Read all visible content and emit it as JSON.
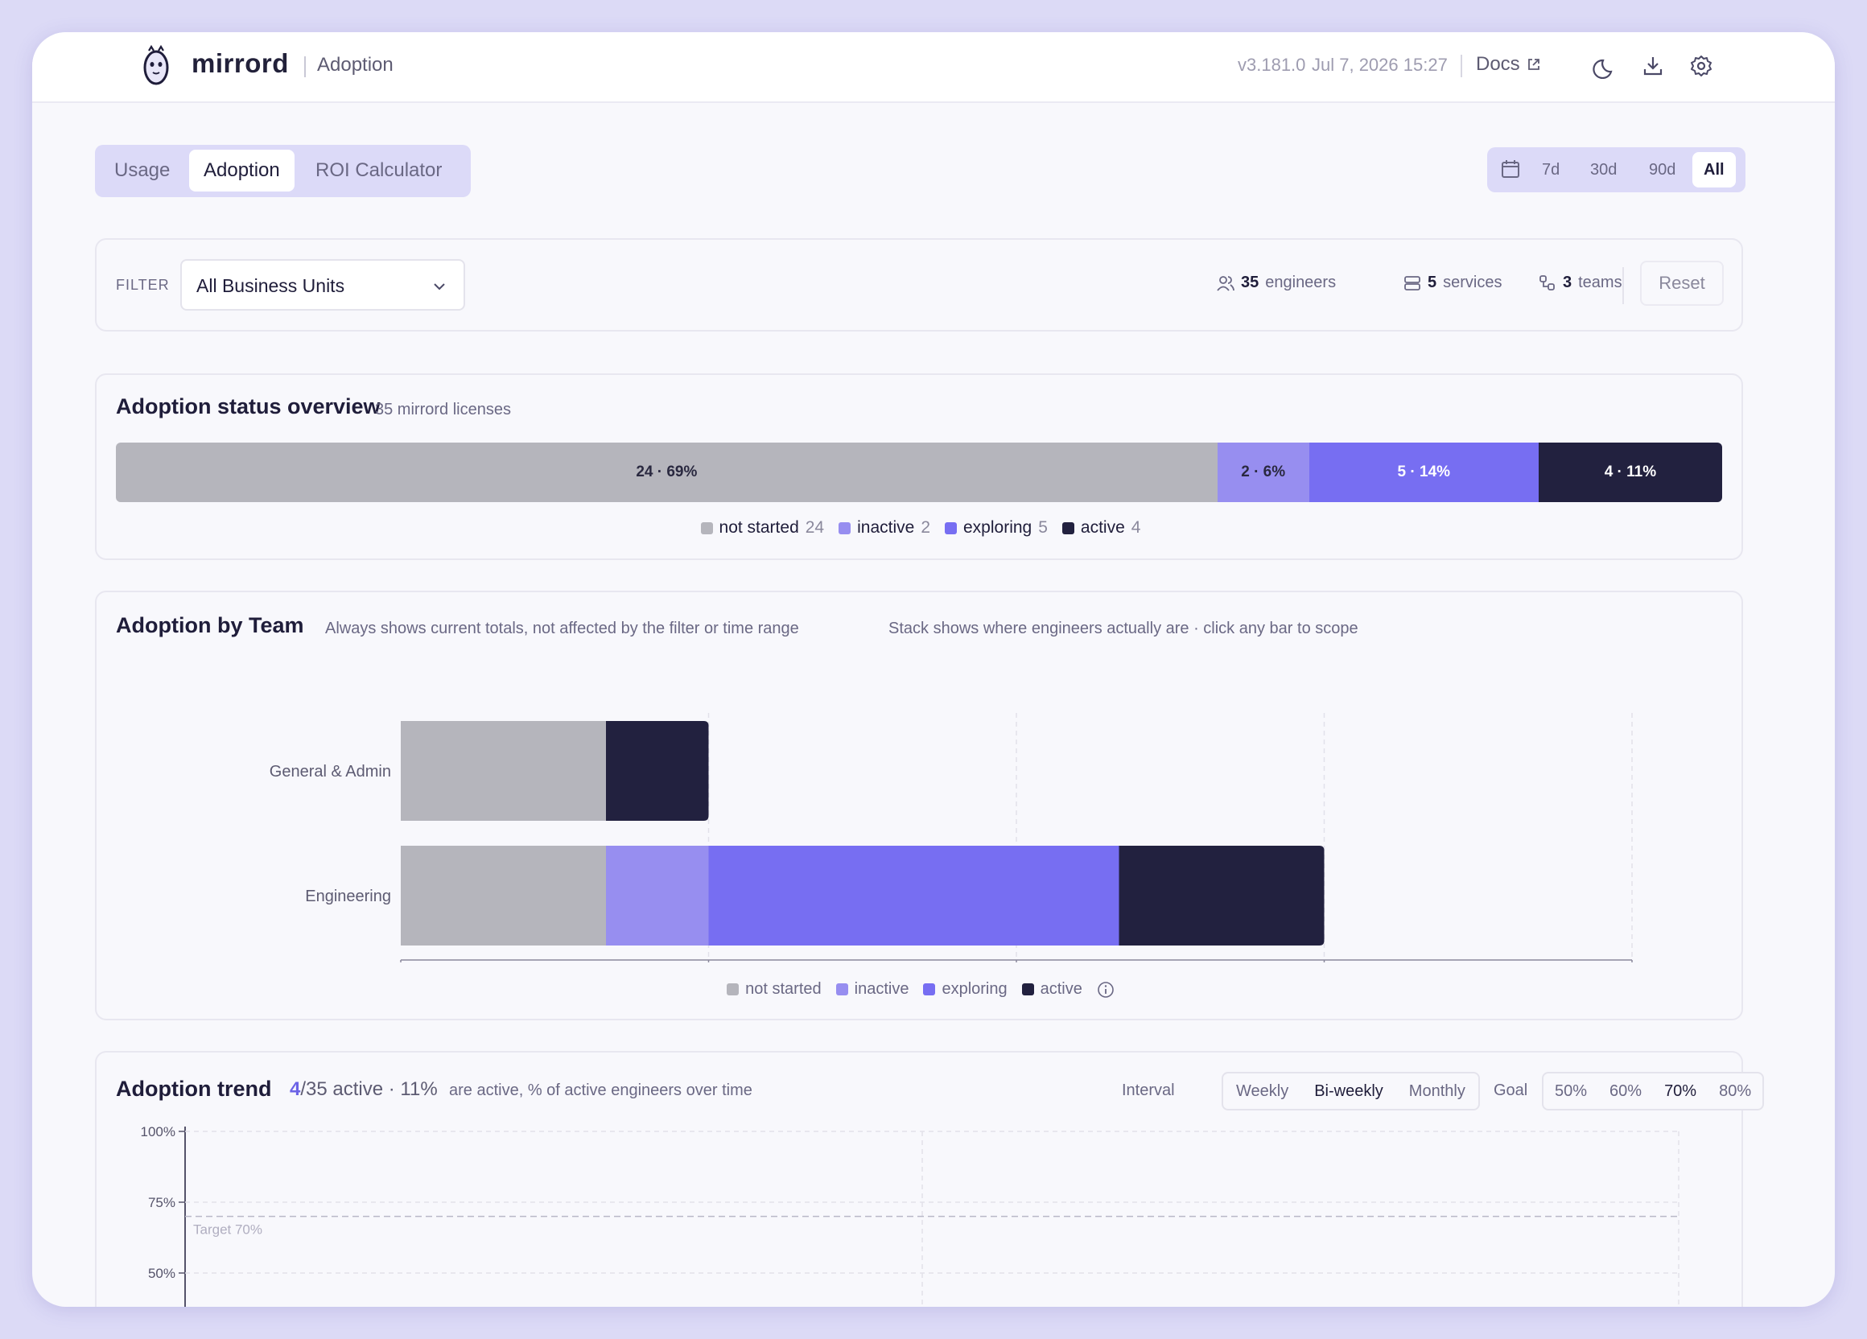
{
  "header": {
    "brand": "mirrord",
    "page": "Adoption",
    "version": "v3.181.0",
    "timestamp": "Jul 7, 2026 15:27",
    "docs_label": "Docs"
  },
  "tabs": [
    "Usage",
    "Adoption",
    "ROI Calculator"
  ],
  "active_tab": "Adoption",
  "range": {
    "options": [
      "7d",
      "30d",
      "90d",
      "All"
    ],
    "selected": "All"
  },
  "filter": {
    "label": "FILTER",
    "value": "All Business Units",
    "engineers_count": "35",
    "engineers_label": "engineers",
    "services_count": "5",
    "services_label": "services",
    "teams_count": "3",
    "teams_label": "teams",
    "reset_label": "Reset"
  },
  "colors": {
    "not_started": "#b5b5bc",
    "inactive": "#978ef0",
    "exploring": "#776ef2",
    "active": "#22213f",
    "accent": "#6c63e6"
  },
  "overview": {
    "title": "Adoption status overview",
    "subtitle": "35 mirrord licenses",
    "segments": [
      {
        "key": "not_started",
        "label": "24 · 69%",
        "value": 24
      },
      {
        "key": "inactive",
        "label": "2 · 6%",
        "value": 2
      },
      {
        "key": "exploring",
        "label": "5 · 14%",
        "value": 5
      },
      {
        "key": "active",
        "label": "4 · 11%",
        "value": 4
      }
    ],
    "legend": [
      {
        "key": "not_started",
        "label": "not started",
        "count": "24"
      },
      {
        "key": "inactive",
        "label": "inactive",
        "count": "2"
      },
      {
        "key": "exploring",
        "label": "exploring",
        "count": "5"
      },
      {
        "key": "active",
        "label": "active",
        "count": "4"
      }
    ]
  },
  "team": {
    "title": "Adoption by Team",
    "note1": "Always shows current totals, not affected by the filter or time range",
    "note2": "Stack shows where engineers actually are · click any bar to scope",
    "legend": [
      "not started",
      "inactive",
      "exploring",
      "active"
    ]
  },
  "chart_data": [
    {
      "type": "bar",
      "orientation": "horizontal",
      "stacked": true,
      "categories": [
        "General & Admin",
        "Engineering"
      ],
      "series": [
        {
          "name": "not started",
          "values": [
            2,
            2
          ]
        },
        {
          "name": "inactive",
          "values": [
            0,
            1
          ]
        },
        {
          "name": "exploring",
          "values": [
            0,
            4
          ]
        },
        {
          "name": "active",
          "values": [
            1,
            2
          ]
        }
      ],
      "xlim": [
        0,
        12
      ],
      "xticks": [
        0,
        3,
        6,
        9,
        12
      ],
      "grid": true,
      "legend_position": "bottom"
    },
    {
      "type": "line",
      "title": "Adoption trend",
      "yticks": [
        "100%",
        "75%",
        "50%"
      ],
      "target_label": "Target 70%",
      "target": 70,
      "grid": true
    }
  ],
  "trend": {
    "title": "Adoption trend",
    "active_num": "4",
    "total_text": "/35 active · 11%",
    "description": "are active, % of active engineers over time",
    "interval_label": "Interval",
    "intervals": [
      "Weekly",
      "Bi-weekly",
      "Monthly"
    ],
    "interval_selected": "Bi-weekly",
    "goal_label": "Goal",
    "goals": [
      "50%",
      "60%",
      "70%",
      "80%"
    ],
    "goal_selected": "70%"
  }
}
